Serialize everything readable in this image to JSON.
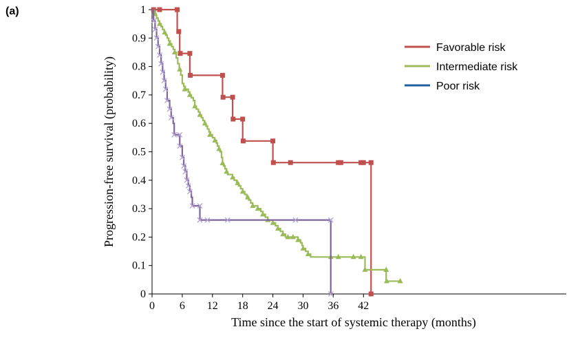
{
  "panel_label": "(a)",
  "chart_data": {
    "type": "line",
    "step": true,
    "xlabel": "Time since the start of systemic therapy (months)",
    "ylabel": "Progression-free survival (probability)",
    "xlim": [
      0,
      49
    ],
    "ylim": [
      0,
      1
    ],
    "xticks": [
      0,
      6,
      12,
      18,
      24,
      30,
      36,
      42
    ],
    "yticks": [
      0,
      0.1,
      0.2,
      0.3,
      0.4,
      0.5,
      0.6,
      0.7,
      0.8,
      0.9,
      1
    ],
    "grid": false,
    "legend_position": "top-right",
    "series": [
      {
        "name": "Favorable risk",
        "color": "#c0504d",
        "marker": "square",
        "steps": [
          [
            0,
            1
          ],
          [
            5,
            1
          ],
          [
            5,
            0.923
          ],
          [
            5.5,
            0.923
          ],
          [
            5.5,
            0.846
          ],
          [
            7.5,
            0.846
          ],
          [
            7.5,
            0.769
          ],
          [
            14,
            0.769
          ],
          [
            14,
            0.692
          ],
          [
            16,
            0.692
          ],
          [
            16,
            0.615
          ],
          [
            18,
            0.615
          ],
          [
            18,
            0.538
          ],
          [
            24,
            0.538
          ],
          [
            24,
            0.462
          ],
          [
            43.5,
            0.462
          ],
          [
            43.5,
            0
          ]
        ],
        "marks": [
          [
            0.3,
            1
          ],
          [
            1.5,
            1
          ],
          [
            5,
            1
          ],
          [
            5.3,
            0.923
          ],
          [
            5.6,
            0.846
          ],
          [
            7.5,
            0.846
          ],
          [
            7.6,
            0.769
          ],
          [
            14,
            0.769
          ],
          [
            14.1,
            0.692
          ],
          [
            16,
            0.692
          ],
          [
            16.1,
            0.615
          ],
          [
            18,
            0.615
          ],
          [
            18.1,
            0.538
          ],
          [
            24,
            0.538
          ],
          [
            24.1,
            0.462
          ],
          [
            27.5,
            0.462
          ],
          [
            37,
            0.462
          ],
          [
            37.5,
            0.462
          ],
          [
            41.5,
            0.462
          ],
          [
            42,
            0.462
          ],
          [
            43.5,
            0.462
          ],
          [
            43.5,
            0
          ]
        ]
      },
      {
        "name": "Intermediate risk",
        "color": "#9bbb59",
        "marker": "triangle",
        "steps": [
          [
            0,
            1
          ],
          [
            0.3,
            0.99
          ],
          [
            0.6,
            0.98
          ],
          [
            0.9,
            0.97
          ],
          [
            1.2,
            0.96
          ],
          [
            1.5,
            0.95
          ],
          [
            1.8,
            0.94
          ],
          [
            2.1,
            0.93
          ],
          [
            2.4,
            0.92
          ],
          [
            2.7,
            0.91
          ],
          [
            3,
            0.9
          ],
          [
            3.3,
            0.89
          ],
          [
            3.6,
            0.88
          ],
          [
            3.9,
            0.87
          ],
          [
            4.2,
            0.86
          ],
          [
            4.5,
            0.85
          ],
          [
            4.8,
            0.83
          ],
          [
            5.1,
            0.81
          ],
          [
            5.4,
            0.79
          ],
          [
            5.7,
            0.77
          ],
          [
            6,
            0.74
          ],
          [
            6.3,
            0.73
          ],
          [
            6.6,
            0.72
          ],
          [
            7.2,
            0.71
          ],
          [
            7.5,
            0.7
          ],
          [
            7.8,
            0.69
          ],
          [
            8.2,
            0.68
          ],
          [
            8.5,
            0.66
          ],
          [
            8.8,
            0.65
          ],
          [
            9.2,
            0.64
          ],
          [
            9.5,
            0.63
          ],
          [
            9.8,
            0.62
          ],
          [
            10.1,
            0.61
          ],
          [
            10.4,
            0.6
          ],
          [
            10.7,
            0.59
          ],
          [
            11,
            0.58
          ],
          [
            11.3,
            0.57
          ],
          [
            11.6,
            0.56
          ],
          [
            12,
            0.55
          ],
          [
            12.4,
            0.54
          ],
          [
            12.8,
            0.53
          ],
          [
            13,
            0.52
          ],
          [
            13.3,
            0.51
          ],
          [
            13.5,
            0.5
          ],
          [
            13.8,
            0.48
          ],
          [
            14,
            0.46
          ],
          [
            14.2,
            0.45
          ],
          [
            14.5,
            0.44
          ],
          [
            14.8,
            0.43
          ],
          [
            15,
            0.42
          ],
          [
            16,
            0.41
          ],
          [
            16.3,
            0.4
          ],
          [
            16.8,
            0.39
          ],
          [
            17.2,
            0.38
          ],
          [
            17.6,
            0.37
          ],
          [
            18,
            0.36
          ],
          [
            18.4,
            0.35
          ],
          [
            18.8,
            0.34
          ],
          [
            19.2,
            0.33
          ],
          [
            19.6,
            0.32
          ],
          [
            20,
            0.31
          ],
          [
            21,
            0.3
          ],
          [
            21.6,
            0.29
          ],
          [
            22,
            0.28
          ],
          [
            22.5,
            0.27
          ],
          [
            23,
            0.26
          ],
          [
            24,
            0.25
          ],
          [
            24.5,
            0.24
          ],
          [
            25,
            0.23
          ],
          [
            25.5,
            0.22
          ],
          [
            26,
            0.21
          ],
          [
            26.5,
            0.2
          ],
          [
            28,
            0.2
          ],
          [
            29,
            0.19
          ],
          [
            29.5,
            0.18
          ],
          [
            29.8,
            0.17
          ],
          [
            30,
            0.16
          ],
          [
            30.5,
            0.15
          ],
          [
            31,
            0.14
          ],
          [
            31.5,
            0.13
          ],
          [
            42.3,
            0.13
          ],
          [
            42.3,
            0.085
          ],
          [
            46.5,
            0.085
          ],
          [
            46.5,
            0.045
          ],
          [
            49.5,
            0.045
          ]
        ],
        "marks": [
          [
            0.5,
            0.99
          ],
          [
            1.5,
            0.95
          ],
          [
            2.5,
            0.92
          ],
          [
            3.5,
            0.88
          ],
          [
            4.5,
            0.85
          ],
          [
            5.5,
            0.79
          ],
          [
            6.5,
            0.72
          ],
          [
            7.5,
            0.7
          ],
          [
            8.5,
            0.66
          ],
          [
            9.5,
            0.63
          ],
          [
            10.5,
            0.6
          ],
          [
            11.5,
            0.56
          ],
          [
            12.5,
            0.54
          ],
          [
            13.3,
            0.51
          ],
          [
            14,
            0.46
          ],
          [
            14.8,
            0.43
          ],
          [
            16,
            0.41
          ],
          [
            17,
            0.39
          ],
          [
            18,
            0.36
          ],
          [
            19,
            0.34
          ],
          [
            20,
            0.31
          ],
          [
            21,
            0.3
          ],
          [
            22,
            0.28
          ],
          [
            23,
            0.26
          ],
          [
            24,
            0.25
          ],
          [
            25,
            0.23
          ],
          [
            26,
            0.21
          ],
          [
            27,
            0.2
          ],
          [
            28,
            0.2
          ],
          [
            29,
            0.19
          ],
          [
            30,
            0.16
          ],
          [
            31,
            0.14
          ],
          [
            35.5,
            0.13
          ],
          [
            37,
            0.13
          ],
          [
            40,
            0.13
          ],
          [
            41.5,
            0.13
          ],
          [
            42.3,
            0.085
          ],
          [
            46.5,
            0.085
          ],
          [
            46.6,
            0.045
          ],
          [
            49.3,
            0.045
          ]
        ]
      },
      {
        "name": "Poor risk",
        "color": "#8064a2",
        "legend_color": "#1f5fa0",
        "marker": "x",
        "steps": [
          [
            0,
            1
          ],
          [
            0.3,
            0.96
          ],
          [
            0.6,
            0.93
          ],
          [
            0.9,
            0.9
          ],
          [
            1.2,
            0.87
          ],
          [
            1.5,
            0.84
          ],
          [
            1.8,
            0.81
          ],
          [
            2.1,
            0.78
          ],
          [
            2.4,
            0.75
          ],
          [
            2.7,
            0.72
          ],
          [
            3,
            0.68
          ],
          [
            3.5,
            0.65
          ],
          [
            3.8,
            0.62
          ],
          [
            4.2,
            0.6
          ],
          [
            4.4,
            0.56
          ],
          [
            5.5,
            0.56
          ],
          [
            5.5,
            0.52
          ],
          [
            6,
            0.52
          ],
          [
            6,
            0.48
          ],
          [
            6.3,
            0.45
          ],
          [
            6.6,
            0.43
          ],
          [
            6.9,
            0.4
          ],
          [
            7.2,
            0.38
          ],
          [
            7.5,
            0.36
          ],
          [
            7.8,
            0.34
          ],
          [
            8,
            0.31
          ],
          [
            9.5,
            0.31
          ],
          [
            9.5,
            0.26
          ],
          [
            35.5,
            0.26
          ],
          [
            35.5,
            0
          ]
        ],
        "marks": [
          [
            0.3,
            0.96
          ],
          [
            0.6,
            0.93
          ],
          [
            0.9,
            0.9
          ],
          [
            1.2,
            0.87
          ],
          [
            1.5,
            0.84
          ],
          [
            1.8,
            0.81
          ],
          [
            2.1,
            0.78
          ],
          [
            2.4,
            0.75
          ],
          [
            2.7,
            0.72
          ],
          [
            3,
            0.68
          ],
          [
            3.5,
            0.65
          ],
          [
            3.8,
            0.62
          ],
          [
            4.4,
            0.56
          ],
          [
            5.5,
            0.56
          ],
          [
            5.5,
            0.52
          ],
          [
            6,
            0.48
          ],
          [
            6.3,
            0.45
          ],
          [
            6.6,
            0.43
          ],
          [
            6.9,
            0.4
          ],
          [
            7.2,
            0.38
          ],
          [
            7.5,
            0.36
          ],
          [
            8,
            0.31
          ],
          [
            9.5,
            0.31
          ],
          [
            9.5,
            0.26
          ],
          [
            11,
            0.26
          ],
          [
            15,
            0.26
          ],
          [
            28.5,
            0.26
          ],
          [
            35.5,
            0.26
          ],
          [
            35.5,
            0
          ]
        ]
      }
    ]
  }
}
